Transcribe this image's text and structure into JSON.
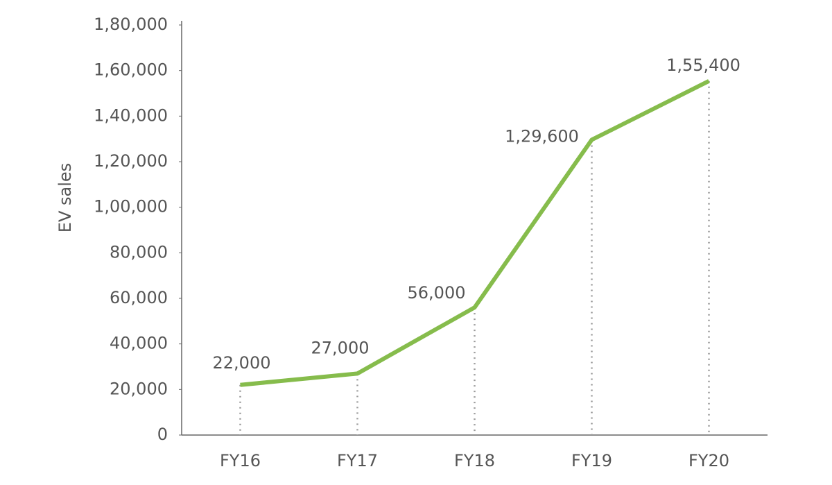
{
  "chart_data": {
    "type": "line",
    "y_label": "EV sales",
    "categories": [
      "FY16",
      "FY17",
      "FY18",
      "FY19",
      "FY20"
    ],
    "series": [
      {
        "name": "EV sales",
        "color": "#86bc4c",
        "values": [
          22000,
          27000,
          56000,
          129600,
          155400
        ],
        "value_labels": [
          "22,000",
          "27,000",
          "56,000",
          "1,29,600",
          "1,55,400"
        ]
      }
    ],
    "ylim": [
      0,
      180000
    ],
    "yticks": [
      0,
      {
        "value": 20000,
        "label": "20,000"
      },
      {
        "value": 40000,
        "label": "40,000"
      },
      {
        "value": 60000,
        "label": "60,000"
      },
      {
        "value": 80000,
        "label": "80,000"
      },
      {
        "value": 100000,
        "label": "1,00,000"
      },
      {
        "value": 120000,
        "label": "1,20,000"
      },
      {
        "value": 140000,
        "label": "1,40,000"
      },
      {
        "value": 160000,
        "label": "1,60,000"
      },
      {
        "value": 180000,
        "label": "1,80,000"
      }
    ],
    "grid": false
  }
}
